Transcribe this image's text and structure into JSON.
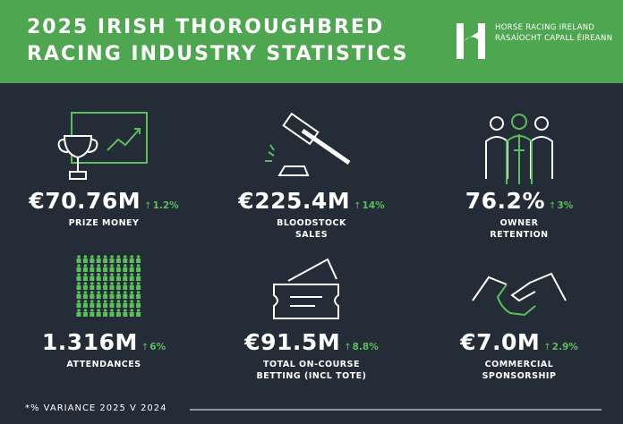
{
  "header": {
    "title_lines": [
      "2025 IRISH THOROUGHBRED",
      "RACING INDUSTRY STATISTICS"
    ],
    "logo": {
      "name": "HORSE RACING IRELAND",
      "name_irish": "RÁSAÍOCHT CAPALL ÉIREANN"
    }
  },
  "stats": [
    {
      "value": "€70.76M",
      "change": "1.2%",
      "label_lines": [
        "PRIZE MONEY"
      ]
    },
    {
      "value": "€225.4M",
      "change": "14%",
      "label_lines": [
        "BLOODSTOCK",
        "SALES"
      ]
    },
    {
      "value": "76.2%",
      "change": "3%",
      "label_lines": [
        "OWNER",
        "RETENTION"
      ]
    },
    {
      "value": "1.316M",
      "change": "6%",
      "label_lines": [
        "ATTENDANCES"
      ]
    },
    {
      "value": "€91.5M",
      "change": "8.8%",
      "label_lines": [
        "TOTAL ON-COURSE",
        "BETTING (INCL TOTE)"
      ]
    },
    {
      "value": "€7.0M",
      "change": "2.9%",
      "label_lines": [
        "COMMERCIAL",
        "SPONSORSHIP"
      ]
    }
  ],
  "footnote": "*% VARIANCE 2025 V 2024"
}
